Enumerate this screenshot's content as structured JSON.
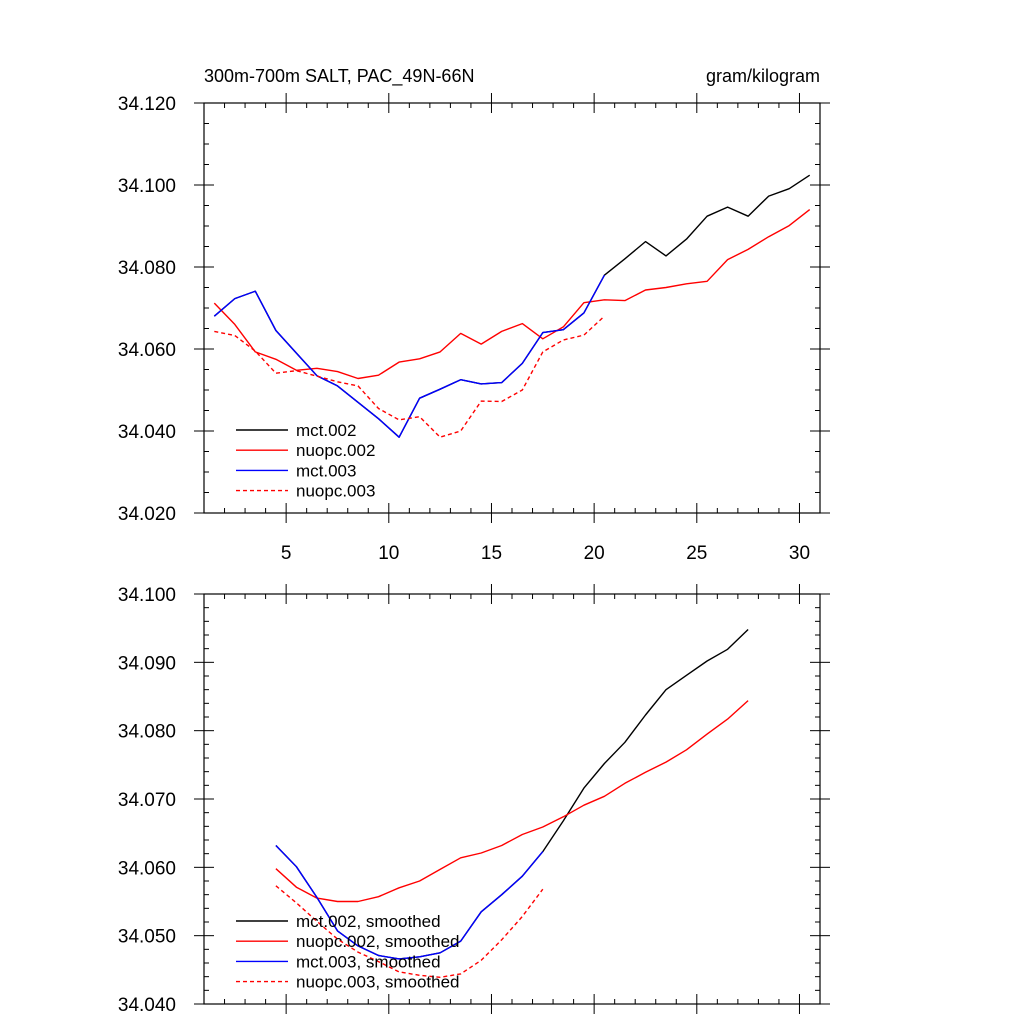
{
  "chart_data": [
    {
      "type": "line",
      "title": "300m-700m SALT, PAC_49N-66N",
      "units": "gram/kilogram",
      "xlabel": "",
      "ylabel": "",
      "xlim": [
        1,
        31
      ],
      "ylim": [
        34.02,
        34.12
      ],
      "xticks": [
        5,
        10,
        15,
        20,
        25,
        30
      ],
      "yticks": [
        "34.020",
        "34.040",
        "34.060",
        "34.080",
        "34.100",
        "34.120"
      ],
      "legend_position": "bottom-left",
      "series": [
        {
          "name": "mct.002",
          "color": "#000000",
          "dash": false,
          "x": [
            1.5,
            2.5,
            3.5,
            4.5,
            5.5,
            6.5,
            7.5,
            8.5,
            9.5,
            10.5,
            11.5,
            12.5,
            13.5,
            14.5,
            15.5,
            16.5,
            17.5,
            18.5,
            19.5,
            20.5,
            21.5,
            22.5,
            23.5,
            24.5,
            25.5,
            26.5,
            27.5,
            28.5,
            29.5,
            30.5
          ],
          "y": [
            34.068,
            34.0723,
            34.0741,
            34.0645,
            34.059,
            34.0535,
            34.051,
            34.047,
            34.043,
            34.0385,
            34.048,
            34.0502,
            34.0525,
            34.0515,
            34.0518,
            34.0565,
            34.064,
            34.0647,
            34.0688,
            34.078,
            34.082,
            34.0862,
            34.0827,
            34.0868,
            34.0924,
            34.0946,
            34.0924,
            34.0973,
            34.0991,
            34.1024
          ]
        },
        {
          "name": "nuopc.002",
          "color": "#ff0000",
          "dash": false,
          "x": [
            1.5,
            2.5,
            3.5,
            4.5,
            5.5,
            6.5,
            7.5,
            8.5,
            9.5,
            10.5,
            11.5,
            12.5,
            13.5,
            14.5,
            15.5,
            16.5,
            17.5,
            18.5,
            19.5,
            20.5,
            21.5,
            22.5,
            23.5,
            24.5,
            25.5,
            26.5,
            27.5,
            28.5,
            29.5,
            30.5
          ],
          "y": [
            34.0712,
            34.066,
            34.0593,
            34.0575,
            34.0548,
            34.0553,
            34.0545,
            34.0528,
            34.0536,
            34.0568,
            34.0576,
            34.0593,
            34.0638,
            34.0612,
            34.0643,
            34.0662,
            34.0625,
            34.0654,
            34.0713,
            34.072,
            34.0718,
            34.0744,
            34.075,
            34.0759,
            34.0765,
            34.0818,
            34.0843,
            34.0874,
            34.0901,
            34.094
          ]
        },
        {
          "name": "mct.003",
          "color": "#0000ff",
          "dash": false,
          "x": [
            1.5,
            2.5,
            3.5,
            4.5,
            5.5,
            6.5,
            7.5,
            8.5,
            9.5,
            10.5,
            11.5,
            12.5,
            13.5,
            14.5,
            15.5,
            16.5,
            17.5,
            18.5,
            19.5,
            20.5
          ],
          "y": [
            34.068,
            34.0723,
            34.0741,
            34.0645,
            34.059,
            34.0535,
            34.051,
            34.047,
            34.043,
            34.0385,
            34.048,
            34.0502,
            34.0525,
            34.0515,
            34.0518,
            34.0565,
            34.064,
            34.0647,
            34.0688,
            34.078
          ]
        },
        {
          "name": "nuopc.003",
          "color": "#ff0000",
          "dash": true,
          "x": [
            1.5,
            2.5,
            3.5,
            4.5,
            5.5,
            6.5,
            7.5,
            8.5,
            9.5,
            10.5,
            11.5,
            12.5,
            13.5,
            14.5,
            15.5,
            16.5,
            17.5,
            18.5,
            19.5,
            20.5
          ],
          "y": [
            34.0643,
            34.0633,
            34.0595,
            34.0541,
            34.0547,
            34.0534,
            34.052,
            34.051,
            34.0455,
            34.0427,
            34.0435,
            34.0385,
            34.04,
            34.0473,
            34.0472,
            34.05,
            34.0593,
            34.0622,
            34.0634,
            34.068
          ]
        }
      ]
    },
    {
      "type": "line",
      "title": "",
      "xlabel": "",
      "ylabel": "",
      "xlim": [
        1,
        31
      ],
      "ylim": [
        34.04,
        34.1
      ],
      "yticks": [
        "34.040",
        "34.050",
        "34.060",
        "34.070",
        "34.080",
        "34.090",
        "34.100"
      ],
      "legend_position": "bottom-left",
      "series": [
        {
          "name": "mct.002, smoothed",
          "color": "#000000",
          "dash": false,
          "x": [
            4.5,
            5.5,
            6.5,
            7.5,
            8.5,
            9.5,
            10.5,
            11.5,
            12.5,
            13.5,
            14.5,
            15.5,
            16.5,
            17.5,
            18.5,
            19.5,
            20.5,
            21.5,
            22.5,
            23.5,
            24.5,
            25.5,
            26.5,
            27.5
          ],
          "y": [
            34.0632,
            34.0601,
            34.0556,
            34.0507,
            34.0485,
            34.0471,
            34.0466,
            34.0469,
            34.0475,
            34.0492,
            34.0535,
            34.056,
            34.0587,
            34.0623,
            34.0668,
            34.0716,
            34.0752,
            34.0783,
            34.0823,
            34.086,
            34.0881,
            34.0902,
            34.0919,
            34.0948
          ]
        },
        {
          "name": "nuopc.002, smoothed",
          "color": "#ff0000",
          "dash": false,
          "x": [
            4.5,
            5.5,
            6.5,
            7.5,
            8.5,
            9.5,
            10.5,
            11.5,
            12.5,
            13.5,
            14.5,
            15.5,
            16.5,
            17.5,
            18.5,
            19.5,
            20.5,
            21.5,
            22.5,
            23.5,
            24.5,
            25.5,
            26.5,
            27.5
          ],
          "y": [
            34.0598,
            34.0571,
            34.0555,
            34.055,
            34.055,
            34.0557,
            34.057,
            34.058,
            34.0597,
            34.0614,
            34.0621,
            34.0632,
            34.0648,
            34.0659,
            34.0674,
            34.0691,
            34.0704,
            34.0723,
            34.0739,
            34.0754,
            34.0772,
            34.0795,
            34.0817,
            34.0844
          ]
        },
        {
          "name": "mct.003, smoothed",
          "color": "#0000ff",
          "dash": false,
          "x": [
            4.5,
            5.5,
            6.5,
            7.5,
            8.5,
            9.5,
            10.5,
            11.5,
            12.5,
            13.5,
            14.5,
            15.5,
            16.5,
            17.5
          ],
          "y": [
            34.0632,
            34.0601,
            34.0556,
            34.0507,
            34.0485,
            34.0471,
            34.0466,
            34.0469,
            34.0475,
            34.0492,
            34.0535,
            34.056,
            34.0587,
            34.0623
          ]
        },
        {
          "name": "nuopc.003, smoothed",
          "color": "#ff0000",
          "dash": true,
          "x": [
            4.5,
            5.5,
            6.5,
            7.5,
            8.5,
            9.5,
            10.5,
            11.5,
            12.5,
            13.5,
            14.5,
            15.5,
            16.5,
            17.5
          ],
          "y": [
            34.0573,
            34.0548,
            34.0521,
            34.0495,
            34.0476,
            34.0462,
            34.0447,
            34.0442,
            34.0439,
            34.0444,
            34.0464,
            34.0494,
            34.0528,
            34.0568
          ]
        }
      ]
    }
  ]
}
